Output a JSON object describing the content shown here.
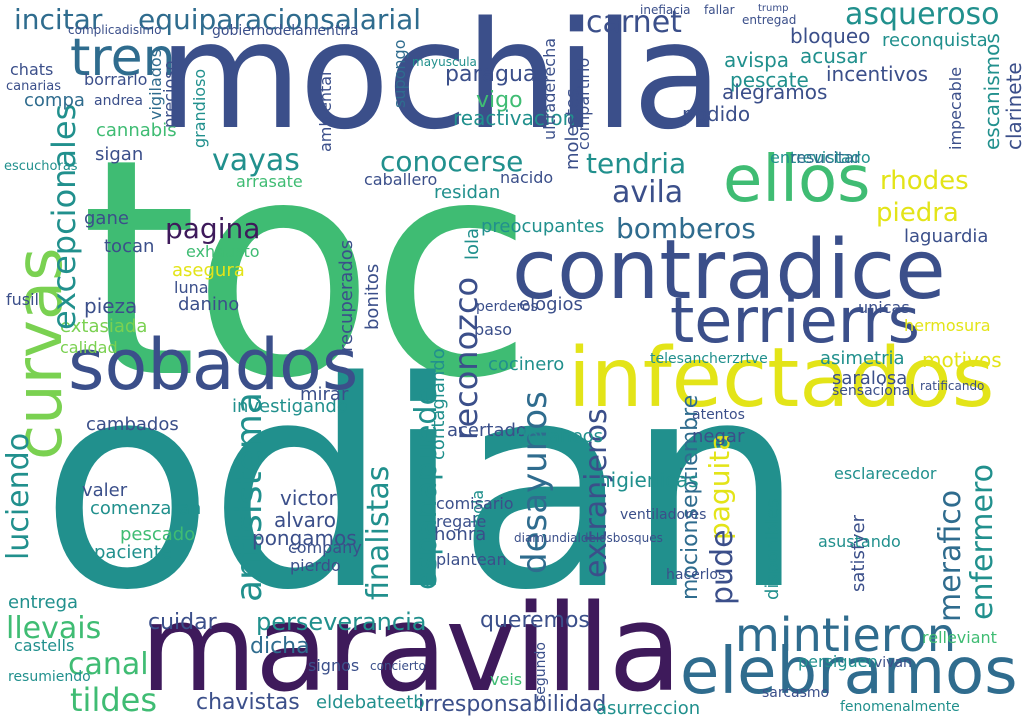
{
  "palette": {
    "purple": "#3e1a5b",
    "indigo": "#3b4f8a",
    "blue": "#2f6c8e",
    "teal": "#21908d",
    "green": "#3fbc73",
    "lime": "#7ad151",
    "yellow": "#e3e418"
  },
  "words": [
    {
      "text": "toc",
      "color": "green"
    },
    {
      "text": "odian",
      "color": "teal"
    },
    {
      "text": "mochila",
      "color": "indigo"
    },
    {
      "text": "maravilla",
      "color": "purple"
    },
    {
      "text": "contradice",
      "color": "indigo"
    },
    {
      "text": "infectados",
      "color": "yellow"
    },
    {
      "text": "sobados",
      "color": "indigo"
    },
    {
      "text": "terrierrs",
      "color": "indigo"
    },
    {
      "text": "elebramos",
      "color": "blue"
    },
    {
      "text": "mintieron",
      "color": "blue"
    },
    {
      "text": "curvas",
      "color": "lime"
    },
    {
      "text": "incitar",
      "color": "blue"
    },
    {
      "text": "equiparacionsalarial",
      "color": "blue"
    },
    {
      "text": "tren",
      "color": "blue"
    },
    {
      "text": "asqueroso",
      "color": "teal"
    },
    {
      "text": "carnet",
      "color": "indigo"
    },
    {
      "text": "ellos",
      "color": "green"
    },
    {
      "text": "conocerse",
      "color": "teal"
    },
    {
      "text": "tendria",
      "color": "teal"
    },
    {
      "text": "avila",
      "color": "indigo"
    },
    {
      "text": "vayas",
      "color": "teal"
    },
    {
      "text": "pagina",
      "color": "purple"
    },
    {
      "text": "bomberos",
      "color": "blue"
    },
    {
      "text": "rhodes",
      "color": "yellow"
    },
    {
      "text": "piedra",
      "color": "yellow"
    },
    {
      "text": "llevais",
      "color": "green"
    },
    {
      "text": "tildes",
      "color": "green"
    },
    {
      "text": "canal",
      "color": "green"
    },
    {
      "text": "chavistas",
      "color": "indigo"
    },
    {
      "text": "irresponsabilidad",
      "color": "indigo"
    },
    {
      "text": "eldebateetb",
      "color": "teal"
    },
    {
      "text": "perseverancia",
      "color": "teal"
    },
    {
      "text": "cuidar",
      "color": "indigo"
    },
    {
      "text": "dicha",
      "color": "blue"
    },
    {
      "text": "queremos",
      "color": "indigo"
    },
    {
      "text": "extasiada",
      "color": "lime"
    },
    {
      "text": "calidad",
      "color": "lime"
    },
    {
      "text": "finalistas",
      "color": "teal"
    },
    {
      "text": "espanapuede",
      "color": "teal"
    },
    {
      "text": "desayunos",
      "color": "blue"
    },
    {
      "text": "antisistema",
      "color": "teal"
    },
    {
      "text": "extranjeros",
      "color": "indigo"
    },
    {
      "text": "reconozco",
      "color": "indigo"
    },
    {
      "text": "mocionseptiembre",
      "color": "blue"
    },
    {
      "text": "paguita",
      "color": "yellow"
    },
    {
      "text": "pude",
      "color": "indigo"
    },
    {
      "text": "merafico",
      "color": "blue"
    },
    {
      "text": "enfermero",
      "color": "teal"
    },
    {
      "text": "excepcionales",
      "color": "teal"
    },
    {
      "text": "luciendo",
      "color": "teal"
    },
    {
      "text": "bloqueo",
      "color": "indigo"
    },
    {
      "text": "reconquista",
      "color": "teal"
    },
    {
      "text": "acusar",
      "color": "teal"
    },
    {
      "text": "incentivos",
      "color": "indigo"
    },
    {
      "text": "alegramos",
      "color": "indigo"
    },
    {
      "text": "paraguas",
      "color": "indigo"
    },
    {
      "text": "vigo",
      "color": "green"
    },
    {
      "text": "podido",
      "color": "indigo"
    },
    {
      "text": "reactivacion",
      "color": "teal"
    },
    {
      "text": "entrevistado",
      "color": "teal"
    },
    {
      "text": "laguardia",
      "color": "indigo"
    },
    {
      "text": "preocupantes",
      "color": "teal"
    },
    {
      "text": "elogios",
      "color": "indigo"
    },
    {
      "text": "cocinero",
      "color": "teal"
    },
    {
      "text": "asimetria",
      "color": "teal"
    },
    {
      "text": "motivos",
      "color": "yellow"
    },
    {
      "text": "saralosa",
      "color": "indigo"
    },
    {
      "text": "hermosura",
      "color": "yellow"
    },
    {
      "text": "unicas",
      "color": "indigo"
    },
    {
      "text": "investigando",
      "color": "teal"
    },
    {
      "text": "cambados",
      "color": "indigo"
    },
    {
      "text": "mirar",
      "color": "indigo"
    },
    {
      "text": "acertado",
      "color": "indigo"
    },
    {
      "text": "devaneos",
      "color": "teal"
    },
    {
      "text": "negar",
      "color": "indigo"
    },
    {
      "text": "victor",
      "color": "indigo"
    },
    {
      "text": "alvaro",
      "color": "indigo"
    },
    {
      "text": "pongamos",
      "color": "indigo"
    },
    {
      "text": "paciente",
      "color": "teal"
    },
    {
      "text": "pescado",
      "color": "green"
    },
    {
      "text": "comenzaran",
      "color": "teal"
    },
    {
      "text": "higienicas",
      "color": "teal"
    },
    {
      "text": "pieza",
      "color": "indigo"
    },
    {
      "text": "asegura",
      "color": "yellow"
    },
    {
      "text": "exhausto",
      "color": "green"
    },
    {
      "text": "danino",
      "color": "indigo"
    },
    {
      "text": "luna",
      "color": "indigo"
    },
    {
      "text": "tocan",
      "color": "indigo"
    },
    {
      "text": "gane",
      "color": "indigo"
    },
    {
      "text": "sigan",
      "color": "indigo"
    },
    {
      "text": "arrasate",
      "color": "green"
    },
    {
      "text": "caballero",
      "color": "indigo"
    },
    {
      "text": "residan",
      "color": "teal"
    },
    {
      "text": "nacido",
      "color": "indigo"
    },
    {
      "text": "cannabis",
      "color": "green"
    },
    {
      "text": "compa",
      "color": "blue"
    },
    {
      "text": "chats",
      "color": "indigo"
    },
    {
      "text": "canarias",
      "color": "indigo"
    },
    {
      "text": "escuchoras",
      "color": "teal"
    },
    {
      "text": "fusil",
      "color": "indigo"
    },
    {
      "text": "entrega",
      "color": "teal"
    },
    {
      "text": "castells",
      "color": "teal"
    },
    {
      "text": "honra",
      "color": "indigo"
    },
    {
      "text": "bola",
      "color": "teal"
    },
    {
      "text": "satisfyer",
      "color": "indigo"
    },
    {
      "text": "asustando",
      "color": "teal"
    },
    {
      "text": "resucitar",
      "color": "blue"
    },
    {
      "text": "supongo",
      "color": "blue"
    },
    {
      "text": "vigilados",
      "color": "blue"
    },
    {
      "text": "precioso",
      "color": "indigo"
    },
    {
      "text": "grandioso",
      "color": "teal"
    },
    {
      "text": "compartirlo",
      "color": "indigo"
    },
    {
      "text": "ultraderecha",
      "color": "indigo"
    },
    {
      "text": "impecable",
      "color": "indigo"
    },
    {
      "text": "pescate",
      "color": "teal"
    },
    {
      "text": "avispa",
      "color": "teal"
    },
    {
      "text": "molestes",
      "color": "indigo"
    },
    {
      "text": "bonitos",
      "color": "indigo"
    },
    {
      "text": "recuperados",
      "color": "indigo"
    },
    {
      "text": "lola",
      "color": "teal"
    },
    {
      "text": "contagiando",
      "color": "teal"
    },
    {
      "text": "valer",
      "color": "indigo"
    },
    {
      "text": "company",
      "color": "indigo"
    },
    {
      "text": "disponibles",
      "color": "teal"
    },
    {
      "text": "relleviant",
      "color": "green"
    },
    {
      "text": "fenomenalmente",
      "color": "teal"
    },
    {
      "text": "asurreccion",
      "color": "teal"
    },
    {
      "text": "pierdo",
      "color": "indigo"
    },
    {
      "text": "veis",
      "color": "green"
    },
    {
      "text": "hacerlos",
      "color": "indigo"
    },
    {
      "text": "borrarlo",
      "color": "indigo"
    },
    {
      "text": "andrea",
      "color": "indigo"
    },
    {
      "text": "segundo",
      "color": "indigo"
    },
    {
      "text": "diamundialdelosbosques",
      "color": "indigo"
    },
    {
      "text": "esclarecedor",
      "color": "teal"
    },
    {
      "text": "ventiladores",
      "color": "indigo"
    },
    {
      "text": "comisario",
      "color": "indigo"
    },
    {
      "text": "gobiernodelamentira",
      "color": "indigo"
    },
    {
      "text": "complicadisimo",
      "color": "indigo"
    },
    {
      "text": "escanismos",
      "color": "teal"
    },
    {
      "text": "clarinete",
      "color": "indigo"
    },
    {
      "text": "sarcasmo",
      "color": "indigo"
    },
    {
      "text": "vivan",
      "color": "indigo"
    },
    {
      "text": "persiguen",
      "color": "teal"
    },
    {
      "text": "signos",
      "color": "indigo"
    },
    {
      "text": "concierto",
      "color": "indigo"
    },
    {
      "text": "resumiendo",
      "color": "teal"
    },
    {
      "text": "regale",
      "color": "indigo"
    },
    {
      "text": "plantean",
      "color": "indigo"
    },
    {
      "text": "sensacional",
      "color": "indigo"
    },
    {
      "text": "atentos",
      "color": "indigo"
    },
    {
      "text": "telesancherzrtve",
      "color": "teal"
    },
    {
      "text": "perderos",
      "color": "indigo"
    },
    {
      "text": "paso",
      "color": "indigo"
    },
    {
      "text": "ratificando",
      "color": "indigo"
    },
    {
      "text": "ambiental",
      "color": "indigo"
    },
    {
      "text": "mayuscula",
      "color": "teal"
    },
    {
      "text": "inefiacia",
      "color": "indigo"
    },
    {
      "text": "entregad",
      "color": "indigo"
    },
    {
      "text": "fallar",
      "color": "indigo"
    },
    {
      "text": "trump",
      "color": "indigo"
    }
  ]
}
